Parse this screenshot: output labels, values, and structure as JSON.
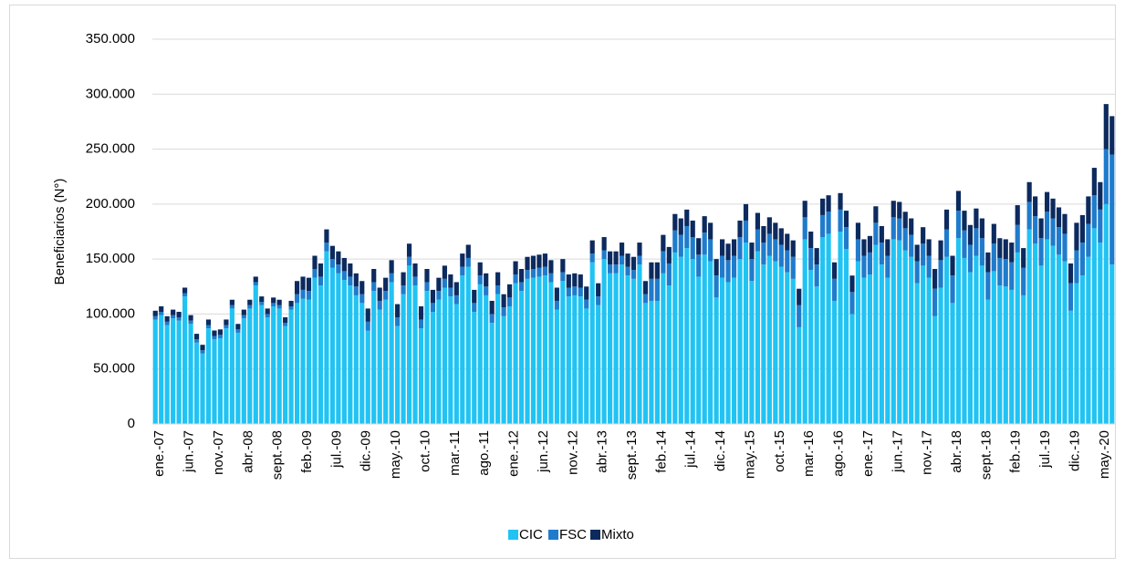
{
  "chart_data": {
    "type": "bar",
    "stacked": true,
    "y_label": "Beneficiarios (N°)",
    "ylim": [
      0,
      350000
    ],
    "yticks": [
      0,
      {
        "value": 50000,
        "label": "50.000"
      },
      {
        "value": 100000,
        "label": "100.000"
      },
      {
        "value": 150000,
        "label": "150.000"
      },
      {
        "value": 200000,
        "label": "200.000"
      },
      {
        "value": 250000,
        "label": "250.000"
      },
      {
        "value": 300000,
        "label": "300.000"
      },
      {
        "value": 350000,
        "label": "350.000"
      }
    ],
    "grid": true,
    "legend": "bottom",
    "categories": [
      "ene.-07",
      null,
      null,
      null,
      null,
      "jun.-07",
      null,
      null,
      null,
      null,
      "nov.-07",
      null,
      null,
      null,
      null,
      "abr.-08",
      null,
      null,
      null,
      null,
      "sept.-08",
      null,
      null,
      null,
      null,
      "feb.-09",
      null,
      null,
      null,
      null,
      "jul.-09",
      null,
      null,
      null,
      null,
      "dic.-09",
      null,
      null,
      null,
      null,
      "may.-10",
      null,
      null,
      null,
      null,
      "oct.-10",
      null,
      null,
      null,
      null,
      "mar.-11",
      null,
      null,
      null,
      null,
      "ago.-11",
      null,
      null,
      null,
      null,
      "ene.-12",
      null,
      null,
      null,
      null,
      "jun.-12",
      null,
      null,
      null,
      null,
      "nov.-12",
      null,
      null,
      null,
      null,
      "abr.-13",
      null,
      null,
      null,
      null,
      "sept.-13",
      null,
      null,
      null,
      null,
      "feb.-14",
      null,
      null,
      null,
      null,
      "jul.-14",
      null,
      null,
      null,
      null,
      "dic.-14",
      null,
      null,
      null,
      null,
      "may.-15",
      null,
      null,
      null,
      null,
      "oct.-15",
      null,
      null,
      null,
      null,
      "mar.-16",
      null,
      null,
      null,
      null,
      "ago.-16",
      null,
      null,
      null,
      null,
      "ene.-17",
      null,
      null,
      null,
      null,
      "jun.-17",
      null,
      null,
      null,
      null,
      "nov.-17",
      null,
      null,
      null,
      null,
      "abr.-18",
      null,
      null,
      null,
      null,
      "sept.-18",
      null,
      null,
      null,
      null,
      "feb.-19",
      null,
      null,
      null,
      null,
      "jul.-19",
      null,
      null,
      null,
      null,
      "dic.-19",
      null,
      null,
      null,
      null,
      "may.-20",
      null,
      null
    ],
    "series": [
      {
        "name": "CIC",
        "color": "#21c3f3",
        "values": [
          95000,
          99000,
          90000,
          96000,
          94000,
          116000,
          91000,
          74000,
          64000,
          87000,
          77000,
          78000,
          87000,
          105000,
          83000,
          96000,
          105000,
          126000,
          108000,
          97000,
          107000,
          105000,
          89000,
          104000,
          110000,
          114000,
          113000,
          133000,
          126000,
          157000,
          142000,
          137000,
          131000,
          126000,
          117000,
          110000,
          85000,
          121000,
          104000,
          113000,
          129000,
          89000,
          118000,
          144000,
          126000,
          87000,
          121000,
          102000,
          113000,
          124000,
          116000,
          109000,
          135000,
          143000,
          102000,
          127000,
          117000,
          92000,
          118000,
          98000,
          107000,
          128000,
          121000,
          132000,
          133000,
          134000,
          135000,
          129000,
          104000,
          130000,
          116000,
          117000,
          116000,
          105000,
          147000,
          108000,
          150000,
          137000,
          137000,
          145000,
          135000,
          132000,
          145000,
          110000,
          112000,
          112000,
          137000,
          126000,
          156000,
          152000,
          160000,
          150000,
          134000,
          154000,
          148000,
          115000,
          133000,
          129000,
          133000,
          150000,
          165000,
          130000,
          157000,
          145000,
          153000,
          148000,
          143000,
          138000,
          132000,
          88000,
          168000,
          140000,
          125000,
          170000,
          173000,
          112000,
          175000,
          159000,
          100000,
          148000,
          133000,
          136000,
          163000,
          145000,
          133000,
          168000,
          167000,
          158000,
          152000,
          128000,
          144000,
          133000,
          98000,
          124000,
          152000,
          110000,
          169000,
          151000,
          138000,
          153000,
          144000,
          113000,
          139000,
          126000,
          125000,
          122000,
          156000,
          117000,
          177000,
          164000,
          144000,
          168000,
          162000,
          154000,
          148000,
          103000,
          128000,
          135000,
          152000,
          178000,
          165000,
          200000,
          145000
        ]
      },
      {
        "name": "FSC",
        "color": "#1f7bcc",
        "values": [
          3000,
          3000,
          3000,
          3000,
          3000,
          3000,
          3000,
          3000,
          3000,
          3000,
          3000,
          3000,
          3000,
          3000,
          3000,
          3000,
          3000,
          3000,
          3000,
          3000,
          3000,
          3000,
          3000,
          3000,
          8000,
          8000,
          8000,
          8000,
          8000,
          8000,
          8000,
          8000,
          8000,
          8000,
          8000,
          8000,
          8000,
          8000,
          8000,
          8000,
          8000,
          8000,
          8000,
          8000,
          8000,
          8000,
          8000,
          8000,
          8000,
          8000,
          8000,
          8000,
          8000,
          8000,
          8000,
          8000,
          8000,
          8000,
          8000,
          8000,
          8000,
          8000,
          8000,
          8000,
          8000,
          8000,
          8000,
          8000,
          8000,
          8000,
          8000,
          8000,
          8000,
          8000,
          8000,
          8000,
          8000,
          8000,
          8000,
          8000,
          8000,
          8000,
          8000,
          8000,
          20000,
          20000,
          20000,
          20000,
          20000,
          20000,
          20000,
          20000,
          20000,
          20000,
          20000,
          20000,
          20000,
          20000,
          20000,
          20000,
          20000,
          20000,
          20000,
          20000,
          20000,
          20000,
          20000,
          20000,
          20000,
          20000,
          20000,
          20000,
          20000,
          20000,
          20000,
          20000,
          20000,
          20000,
          20000,
          20000,
          20000,
          20000,
          20000,
          20000,
          20000,
          20000,
          20000,
          20000,
          20000,
          20000,
          20000,
          20000,
          25000,
          25000,
          25000,
          25000,
          25000,
          25000,
          25000,
          25000,
          25000,
          25000,
          25000,
          25000,
          25000,
          25000,
          25000,
          25000,
          25000,
          25000,
          25000,
          25000,
          25000,
          25000,
          25000,
          25000,
          30000,
          30000,
          30000,
          30000,
          30000,
          50000,
          100000
        ]
      },
      {
        "name": "Mixto",
        "color": "#0c2a5e",
        "values": [
          5000,
          5000,
          5000,
          5000,
          5000,
          5000,
          5000,
          5000,
          5000,
          5000,
          5000,
          5000,
          5000,
          5000,
          5000,
          5000,
          5000,
          5000,
          5000,
          5000,
          5000,
          5000,
          5000,
          5000,
          12000,
          12000,
          12000,
          12000,
          12000,
          12000,
          12000,
          12000,
          12000,
          12000,
          12000,
          12000,
          12000,
          12000,
          12000,
          12000,
          12000,
          12000,
          12000,
          12000,
          12000,
          12000,
          12000,
          12000,
          12000,
          12000,
          12000,
          12000,
          12000,
          12000,
          12000,
          12000,
          12000,
          12000,
          12000,
          12000,
          12000,
          12000,
          12000,
          12000,
          12000,
          12000,
          12000,
          12000,
          12000,
          12000,
          12000,
          12000,
          12000,
          12000,
          12000,
          12000,
          12000,
          12000,
          12000,
          12000,
          12000,
          12000,
          12000,
          12000,
          15000,
          15000,
          15000,
          15000,
          15000,
          15000,
          15000,
          15000,
          15000,
          15000,
          15000,
          15000,
          15000,
          15000,
          15000,
          15000,
          15000,
          15000,
          15000,
          15000,
          15000,
          15000,
          15000,
          15000,
          15000,
          15000,
          15000,
          15000,
          15000,
          15000,
          15000,
          15000,
          15000,
          15000,
          15000,
          15000,
          15000,
          15000,
          15000,
          15000,
          15000,
          15000,
          15000,
          15000,
          15000,
          15000,
          15000,
          15000,
          18000,
          18000,
          18000,
          18000,
          18000,
          18000,
          18000,
          18000,
          18000,
          18000,
          18000,
          18000,
          18000,
          18000,
          18000,
          18000,
          18000,
          18000,
          18000,
          18000,
          18000,
          18000,
          18000,
          18000,
          25000,
          25000,
          25000,
          25000,
          25000,
          41000,
          35000
        ]
      }
    ]
  }
}
